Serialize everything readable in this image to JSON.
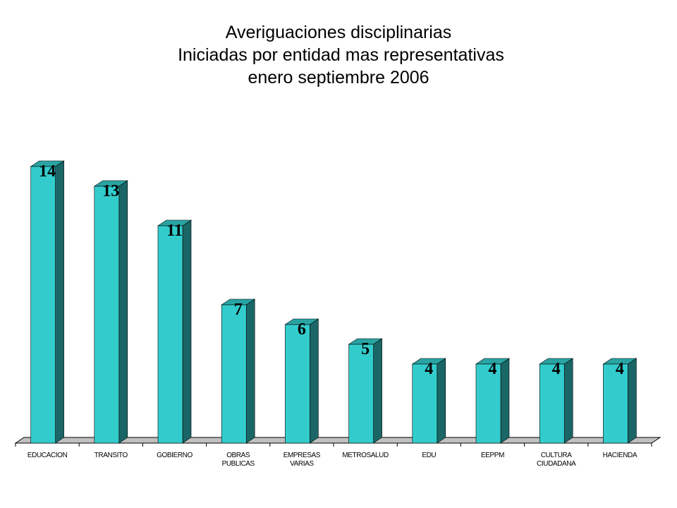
{
  "title_lines": [
    "Averiguaciones disciplinarias",
    " Iniciadas por entidad mas representativas",
    "enero septiembre 2006"
  ],
  "chart_data": {
    "type": "bar",
    "title": "Averiguaciones disciplinarias Iniciadas por entidad mas representativas enero septiembre 2006",
    "categories": [
      [
        "EDUCACION"
      ],
      [
        "TRANSITO"
      ],
      [
        "GOBIERNO"
      ],
      [
        "OBRAS",
        "PUBLICAS"
      ],
      [
        "EMPRESAS",
        "VARIAS"
      ],
      [
        "METROSALUD"
      ],
      [
        "EDU"
      ],
      [
        "EEPPM"
      ],
      [
        "CULTURA",
        "CIUDADANA"
      ],
      [
        "HACIENDA"
      ]
    ],
    "values": [
      14,
      13,
      11,
      7,
      6,
      5,
      4,
      4,
      4,
      4
    ],
    "ylim": [
      0,
      14
    ],
    "grid": false,
    "colors": {
      "bar_front": "#33CCCC",
      "bar_top": "#2AA3A3",
      "bar_side": "#1A6666",
      "floor": "#C0C0C0"
    }
  }
}
